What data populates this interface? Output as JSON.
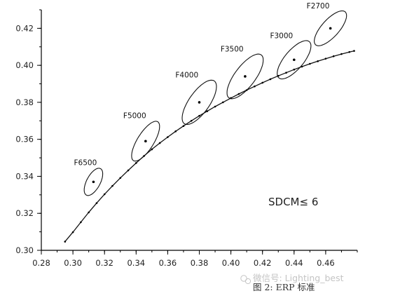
{
  "chart_data": {
    "type": "scatter",
    "title": "",
    "xlabel": "",
    "ylabel": "",
    "xlim": [
      0.28,
      0.48
    ],
    "ylim": [
      0.3,
      0.43
    ],
    "x_ticks": [
      "0.28",
      "0.30",
      "0.32",
      "0.34",
      "0.36",
      "0.38",
      "0.40",
      "0.42",
      "0.44",
      "0.46"
    ],
    "y_ticks": [
      "0.30",
      "0.32",
      "0.34",
      "0.36",
      "0.38",
      "0.40",
      "0.42"
    ],
    "grid": false,
    "curve": {
      "name": "",
      "x": [
        0.295,
        0.3,
        0.305,
        0.31,
        0.315,
        0.32,
        0.325,
        0.33,
        0.335,
        0.34,
        0.345,
        0.35,
        0.355,
        0.36,
        0.365,
        0.37,
        0.375,
        0.38,
        0.385,
        0.39,
        0.395,
        0.4,
        0.405,
        0.41,
        0.415,
        0.42,
        0.425,
        0.43,
        0.435,
        0.44,
        0.445,
        0.45,
        0.455,
        0.46,
        0.465,
        0.47,
        0.475,
        0.478
      ],
      "y": [
        0.3047,
        0.3098,
        0.3152,
        0.3205,
        0.3255,
        0.3303,
        0.3348,
        0.3391,
        0.3432,
        0.3472,
        0.351,
        0.3546,
        0.358,
        0.3612,
        0.3643,
        0.3672,
        0.37,
        0.3727,
        0.3752,
        0.3777,
        0.38,
        0.3823,
        0.3845,
        0.3866,
        0.3886,
        0.3906,
        0.3925,
        0.3943,
        0.396,
        0.3977,
        0.3993,
        0.4008,
        0.4022,
        0.4036,
        0.4049,
        0.4061,
        0.4072,
        0.4078
      ]
    },
    "ellipses": [
      {
        "label": "F6500",
        "center": [
          0.313,
          0.337
        ],
        "semi_major": 0.0095,
        "semi_minor": 0.0043,
        "angle_deg": 62
      },
      {
        "label": "F5000",
        "center": [
          0.346,
          0.359
        ],
        "semi_major": 0.0145,
        "semi_minor": 0.0052,
        "angle_deg": 58
      },
      {
        "label": "F4000",
        "center": [
          0.38,
          0.38
        ],
        "semi_major": 0.0165,
        "semi_minor": 0.0065,
        "angle_deg": 55
      },
      {
        "label": "F3500",
        "center": [
          0.409,
          0.394
        ],
        "semi_major": 0.017,
        "semi_minor": 0.0065,
        "angle_deg": 53
      },
      {
        "label": "F3000",
        "center": [
          0.44,
          0.403
        ],
        "semi_major": 0.015,
        "semi_minor": 0.006,
        "angle_deg": 50
      },
      {
        "label": "F2700",
        "center": [
          0.463,
          0.42
        ],
        "semi_major": 0.014,
        "semi_minor": 0.0055,
        "angle_deg": 48
      }
    ],
    "annotation": "SDCM≤ 6"
  },
  "watermark": "微信号: Lighting_best",
  "caption": "图 2: ERP 标准"
}
